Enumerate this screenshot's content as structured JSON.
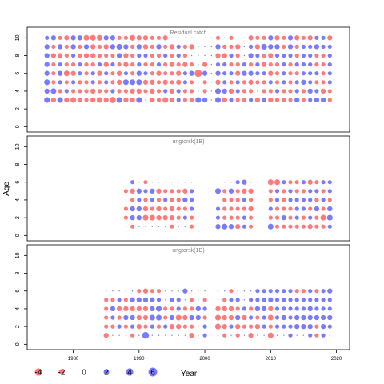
{
  "chart_data": {
    "type": "scatter",
    "encoding": "bubble",
    "ylabel": "Age",
    "xlabel": "Year",
    "xlim": [
      1973,
      2022
    ],
    "x_ticks": [
      1980,
      1990,
      2000,
      2010,
      2020
    ],
    "colors": {
      "negative": "#ff4d4d",
      "positive": "#4d4dff"
    },
    "panels": [
      {
        "title": "Residual catch",
        "ylim": [
          -0.6,
          11.2
        ],
        "y_ticks": [
          0,
          2,
          4,
          6,
          8,
          10
        ],
        "ages": [
          3,
          4,
          5,
          6,
          7,
          8,
          9,
          10
        ],
        "years": [
          1976,
          1977,
          1978,
          1979,
          1980,
          1981,
          1982,
          1983,
          1984,
          1985,
          1986,
          1987,
          1988,
          1989,
          1990,
          1991,
          1992,
          1993,
          1994,
          1995,
          1996,
          1997,
          1998,
          1999,
          2000,
          2001,
          2002,
          2003,
          2004,
          2005,
          2006,
          2007,
          2008,
          2009,
          2010,
          2011,
          2012,
          2013,
          2014,
          2015,
          2016,
          2017,
          2018,
          2019
        ],
        "values": [
          [
            3,
            -2,
            3,
            -2,
            -3,
            -2,
            -1,
            -2,
            -3,
            -2,
            -4,
            3,
            -2,
            -2,
            3,
            0,
            -2,
            -1,
            -3,
            -2,
            1,
            -1,
            -1,
            3,
            2,
            0,
            3,
            -2,
            1,
            -1,
            -1,
            1,
            -2,
            1,
            -2,
            -1,
            -1,
            -1,
            2,
            -1,
            1,
            2,
            2,
            -1
          ],
          [
            2,
            3,
            -1,
            1,
            -1,
            -1,
            -1,
            -2,
            -1,
            -1,
            1,
            -1,
            -1,
            -2,
            -2,
            -1,
            -2,
            -1,
            1,
            -2,
            1,
            -1,
            -1,
            0,
            -1,
            0,
            3,
            2,
            -2,
            1,
            -1,
            -1,
            0,
            -1,
            -1,
            1,
            -1,
            -1,
            1,
            -1,
            2,
            1,
            -2,
            -1
          ],
          [
            3,
            -1,
            1,
            -1,
            1,
            -1,
            -1,
            1,
            -1,
            1,
            -1,
            -2,
            3,
            3,
            3,
            -2,
            -2,
            -1,
            -2,
            -1,
            -2,
            1,
            -1,
            0,
            -1,
            0,
            -2,
            1,
            -1,
            1,
            -1,
            -2,
            -1,
            -1,
            1,
            -1,
            1,
            -1,
            1,
            2,
            1,
            -1,
            -1,
            1
          ],
          [
            2,
            -1,
            2,
            -3,
            -2,
            1,
            -1,
            1,
            -2,
            1,
            -1,
            -2,
            1,
            -1,
            2,
            1,
            -1,
            -2,
            -1,
            -1,
            -2,
            1,
            2,
            -6,
            2,
            0,
            2,
            1,
            1,
            -2,
            2,
            2,
            1,
            1,
            -2,
            -1,
            1,
            -1,
            -1,
            1,
            1,
            1,
            -1,
            1
          ],
          [
            2,
            -1,
            1,
            -1,
            -1,
            1,
            -1,
            -1,
            1,
            -2,
            1,
            -1,
            -2,
            -1,
            1,
            -1,
            -1,
            1,
            -1,
            -2,
            -1,
            -2,
            -1,
            0,
            -2,
            0,
            1,
            1,
            -1,
            -1,
            1,
            -1,
            1,
            -2,
            -1,
            -1,
            1,
            -1,
            1,
            1,
            1,
            -1,
            -1,
            1
          ],
          [
            2,
            -2,
            -2,
            -1,
            1,
            -1,
            -2,
            -2,
            -1,
            -1,
            -1,
            2,
            -2,
            -1,
            1,
            1,
            -1,
            -1,
            1,
            -1,
            1,
            -1,
            0,
            0,
            0,
            0,
            -2,
            -2,
            1,
            -1,
            0,
            2,
            1,
            -1,
            -2,
            1,
            1,
            1,
            -1,
            1,
            1,
            -1,
            -1,
            1
          ],
          [
            2,
            -1,
            2,
            -1,
            2,
            -1,
            2,
            -2,
            -1,
            -2,
            2,
            3,
            2,
            -1,
            2,
            -2,
            -1,
            2,
            -1,
            -2,
            1,
            -1,
            -2,
            0,
            0,
            0,
            2,
            -1,
            -1,
            -2,
            0,
            1,
            -2,
            3,
            2,
            2,
            -1,
            2,
            -1,
            1,
            1,
            2,
            1,
            1
          ],
          [
            1,
            2,
            -1,
            -2,
            2,
            2,
            -3,
            -3,
            -3,
            2,
            2,
            -1,
            -1,
            -3,
            -2,
            -2,
            -1,
            -1,
            -2,
            0,
            0,
            0,
            0,
            0,
            0,
            0,
            -1,
            0,
            -1,
            0,
            0,
            -2,
            -1,
            -1,
            2,
            -2,
            -1,
            2,
            -2,
            -1,
            -2,
            1,
            1,
            -2
          ]
        ]
      },
      {
        "title": "ungtorsk(1B)",
        "ylim": [
          -0.6,
          11.2
        ],
        "y_ticks": [
          0,
          2,
          4,
          6,
          8,
          10
        ],
        "ages": [
          1,
          2,
          3,
          4,
          5,
          6
        ],
        "years": [
          1988,
          1989,
          1990,
          1991,
          1992,
          1993,
          1994,
          1995,
          1996,
          1997,
          1998,
          2002,
          2003,
          2004,
          2005,
          2006,
          2007,
          2010,
          2011,
          2012,
          2013,
          2014,
          2015,
          2016,
          2017,
          2018,
          2019
        ],
        "values": [
          [
            0,
            -1,
            0,
            0,
            0,
            0,
            0,
            -1,
            0,
            0,
            -1,
            2,
            3,
            2,
            -2,
            1,
            -1,
            3,
            -1,
            -1,
            -1,
            -1,
            -1,
            -2,
            -1,
            -1,
            1
          ],
          [
            -1,
            2,
            2,
            -3,
            -3,
            -2,
            -2,
            -2,
            -1,
            1,
            -1,
            1,
            -1,
            -1,
            -1,
            1,
            -1,
            -1,
            -1,
            2,
            -1,
            1,
            -1,
            1,
            -1,
            -3,
            3
          ],
          [
            -1,
            2,
            2,
            -2,
            -1,
            -2,
            -1,
            -2,
            -1,
            -1,
            1,
            1,
            -1,
            -1,
            -1,
            -1,
            -2,
            1,
            -1,
            -1,
            -1,
            1,
            1,
            -1,
            2,
            -1,
            2
          ],
          [
            0,
            -1,
            1,
            -1,
            1,
            -1,
            1,
            -1,
            -1,
            2,
            1,
            0,
            -1,
            -1,
            -1,
            1,
            -1,
            -1,
            1,
            -1,
            1,
            1,
            1,
            1,
            -1,
            1,
            -1
          ],
          [
            -1,
            -2,
            2,
            1,
            2,
            -2,
            -1,
            -1,
            -1,
            -2,
            1,
            3,
            -1,
            2,
            -1,
            -2,
            -2,
            -1,
            1,
            -1,
            1,
            -1,
            -1,
            1,
            1,
            -1,
            1
          ],
          [
            0,
            1,
            0,
            -1,
            0,
            0,
            0,
            0,
            0,
            0,
            0,
            0,
            0,
            0,
            1,
            2,
            0,
            -3,
            -3,
            1,
            -1,
            -1,
            1,
            -2,
            -1,
            1,
            1
          ]
        ]
      },
      {
        "title": "ungtorsk(1D)",
        "ylim": [
          -0.6,
          11.2
        ],
        "y_ticks": [
          0,
          2,
          4,
          6,
          8,
          10
        ],
        "ages": [
          1,
          2,
          3,
          4,
          5,
          6
        ],
        "years": [
          1985,
          1986,
          1987,
          1988,
          1989,
          1990,
          1991,
          1992,
          1993,
          1994,
          1995,
          1996,
          1997,
          1998,
          1999,
          2000,
          2002,
          2003,
          2004,
          2005,
          2006,
          2007,
          2008,
          2009,
          2010,
          2011,
          2012,
          2013,
          2014,
          2015,
          2016,
          2017,
          2018,
          2019
        ],
        "values": [
          [
            -2,
            0,
            0,
            0,
            -1,
            0,
            5,
            0,
            0,
            0,
            0,
            0,
            0,
            -2,
            0,
            1,
            0,
            -1,
            0,
            -1,
            0,
            -2,
            0,
            0,
            -3,
            0,
            0,
            1,
            0,
            0,
            1,
            -1,
            1,
            0
          ],
          [
            -1,
            -1,
            1,
            -1,
            1,
            -2,
            -1,
            1,
            -1,
            1,
            -2,
            -2,
            -1,
            -1,
            0,
            1,
            -3,
            -2,
            1,
            -2,
            -1,
            -1,
            -2,
            1,
            -1,
            1,
            1,
            1,
            2,
            2,
            2,
            -1,
            2,
            1
          ],
          [
            -1,
            1,
            -1,
            2,
            2,
            -2,
            -2,
            3,
            3,
            -1,
            2,
            -3,
            -2,
            2,
            2,
            -1,
            -3,
            -2,
            -2,
            2,
            -2,
            1,
            -1,
            1,
            -3,
            1,
            2,
            1,
            2,
            2,
            2,
            2,
            2,
            2
          ],
          [
            -1,
            2,
            -2,
            -2,
            -2,
            -2,
            -2,
            2,
            3,
            -1,
            -1,
            1,
            -1,
            -1,
            2,
            1,
            -2,
            -2,
            -2,
            -1,
            1,
            -1,
            2,
            2,
            -2,
            1,
            1,
            1,
            1,
            1,
            2,
            1,
            1,
            1
          ],
          [
            -1,
            -1,
            1,
            -1,
            2,
            2,
            2,
            2,
            1,
            0,
            1,
            1,
            0,
            -1,
            0,
            -1,
            0,
            -1,
            1,
            1,
            0,
            1,
            1,
            1,
            2,
            1,
            1,
            1,
            1,
            1,
            1,
            1,
            1,
            1
          ],
          [
            0,
            0,
            0,
            0,
            0,
            -1,
            -2,
            -1,
            -1,
            0,
            0,
            0,
            2,
            0,
            0,
            0,
            0,
            0,
            -1,
            0,
            0,
            0,
            1,
            1,
            1,
            1,
            1,
            1,
            -1,
            -1,
            1,
            -1,
            1,
            2
          ]
        ]
      }
    ]
  },
  "legend": {
    "entries": [
      {
        "value": -4,
        "label": "-4"
      },
      {
        "value": -2,
        "label": "-2"
      },
      {
        "value": 0,
        "label": "0"
      },
      {
        "value": 2,
        "label": "2"
      },
      {
        "value": 4,
        "label": "4"
      },
      {
        "value": 6,
        "label": "6"
      }
    ]
  }
}
